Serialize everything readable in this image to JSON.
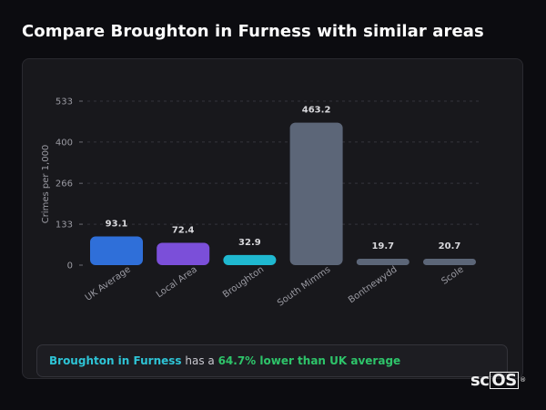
{
  "header": {
    "title": "Compare Broughton in Furness with similar areas"
  },
  "chart_data": {
    "type": "bar",
    "title": "",
    "xlabel": "",
    "ylabel": "Crimes per 1,000",
    "ylim": [
      0,
      533
    ],
    "yticks": [
      "0",
      "133",
      "266",
      "400",
      "533"
    ],
    "ytick_values": [
      0,
      133,
      266,
      400,
      533
    ],
    "grid": true,
    "categories": [
      "UK Average",
      "Local Area",
      "Broughton",
      "South Mimms",
      "Bontnewydd",
      "Scole"
    ],
    "values": [
      93.1,
      72.4,
      32.9,
      463.2,
      19.7,
      20.7
    ],
    "value_labels": [
      "93.1",
      "72.4",
      "32.9",
      "463.2",
      "19.7",
      "20.7"
    ],
    "colors": [
      "#2f6fd9",
      "#7b4fd9",
      "#1fb8d0",
      "#5c6678",
      "#5c6678",
      "#5c6678"
    ]
  },
  "summary": {
    "area": "Broughton in Furness",
    "middle": " has a ",
    "comparison": "64.7% lower than UK average"
  },
  "logo": {
    "sc": "sc",
    "os": "OS",
    "reg": "®"
  }
}
